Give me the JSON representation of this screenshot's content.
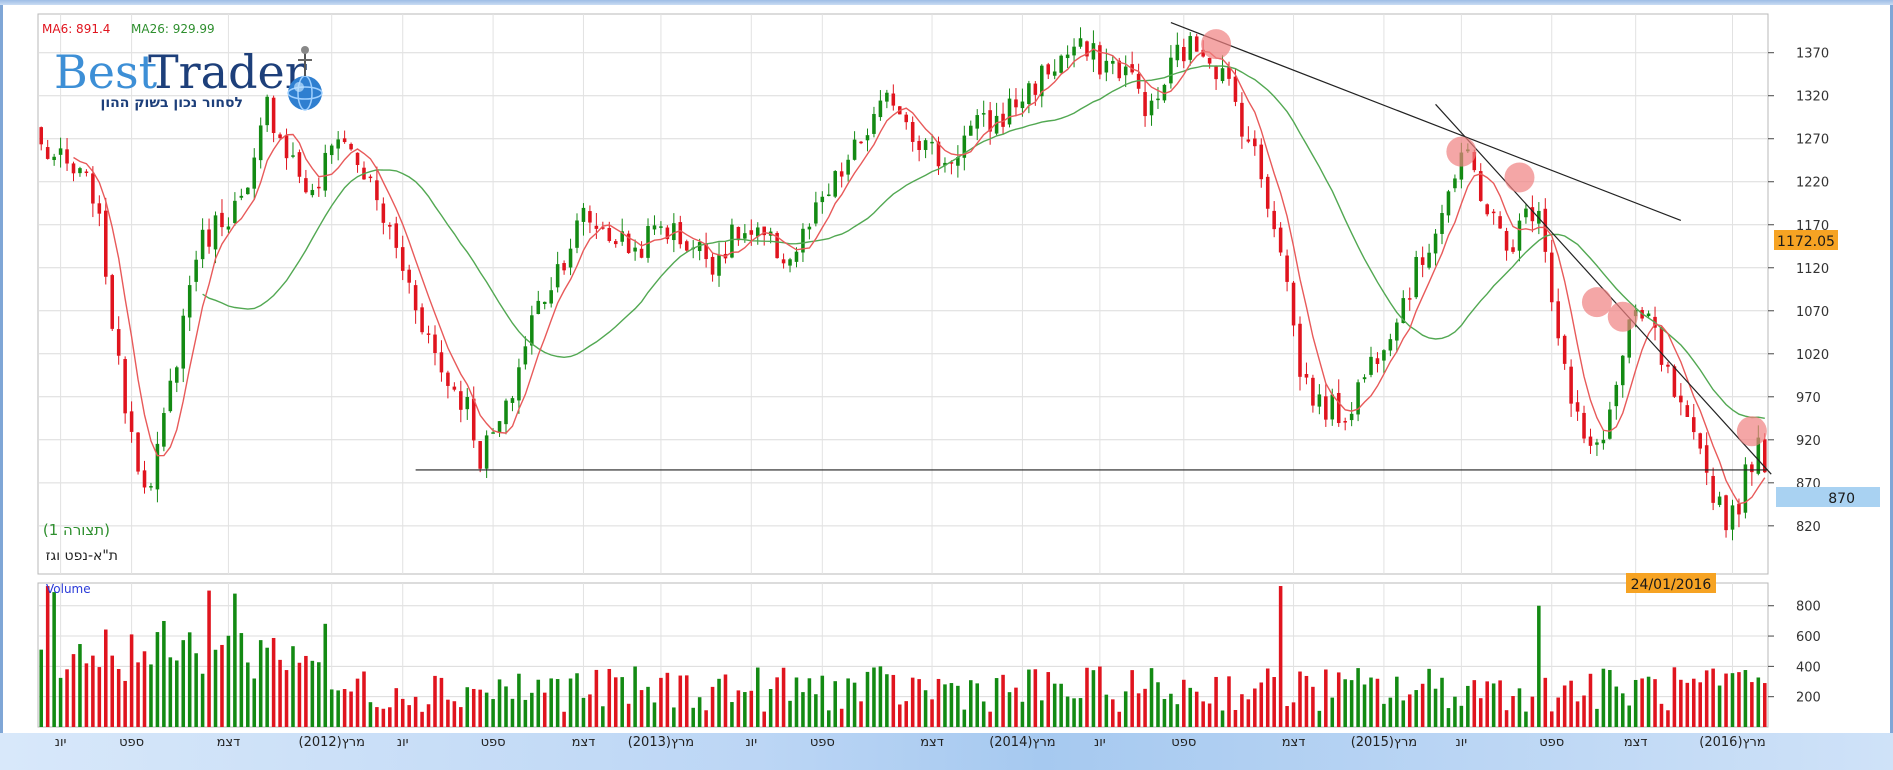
{
  "header": {
    "ma6_label": "MA6: 891.4",
    "ma26_label": "MA26: 929.99"
  },
  "logo": {
    "brand_part1": "Best",
    "brand_part2": "Trader",
    "tagline": "לסחור נכון בשוק ההון"
  },
  "chart_info": {
    "pattern_label": "(תצורה 1)",
    "instrument_name": "ת\"א-נפט וגז",
    "volume_label": "Volume",
    "last_price_tag": "1172.05",
    "current_level_tag": "870",
    "date_tag": "24/01/2016"
  },
  "colors": {
    "up": "#138a13",
    "down": "#e0141e",
    "ma6": "#e85a5a",
    "ma26": "#52a852",
    "tag_orange": "#f6a323",
    "tag_blue": "#a9d2f2",
    "highlight": "#f08080"
  },
  "chart_data": {
    "type": "candlestick",
    "price_axis": {
      "ticks": [
        820,
        870,
        920,
        970,
        1020,
        1070,
        1120,
        1170,
        1220,
        1270,
        1320,
        1370
      ],
      "range": [
        764,
        1415
      ]
    },
    "volume_axis": {
      "ticks": [
        200,
        400,
        600,
        800
      ],
      "range": [
        0,
        950
      ]
    },
    "x_axis_labels": [
      "יונ",
      "ספט",
      "דצמ",
      "מרץ(2012)",
      "יונ",
      "ספט",
      "דצמ",
      "מרץ(2013)",
      "יונ",
      "ספט",
      "דצמ",
      "מרץ(2014)",
      "יונ",
      "ספט",
      "דצמ",
      "מרץ(2015)",
      "יונ",
      "ספט",
      "דצמ",
      "מרץ(2016)"
    ],
    "x_axis_positions": [
      3,
      14,
      29,
      45,
      56,
      70,
      84,
      96,
      110,
      121,
      138,
      152,
      164,
      177,
      194,
      208,
      220,
      234,
      247,
      262
    ],
    "num_bars": 268,
    "anchors": [
      [
        0,
        1260
      ],
      [
        8,
        1210
      ],
      [
        10,
        1120
      ],
      [
        12,
        1000
      ],
      [
        15,
        900
      ],
      [
        17,
        860
      ],
      [
        20,
        980
      ],
      [
        24,
        1140
      ],
      [
        28,
        1180
      ],
      [
        32,
        1200
      ],
      [
        35,
        1310
      ],
      [
        38,
        1260
      ],
      [
        42,
        1200
      ],
      [
        46,
        1280
      ],
      [
        50,
        1230
      ],
      [
        54,
        1160
      ],
      [
        58,
        1080
      ],
      [
        62,
        1000
      ],
      [
        66,
        960
      ],
      [
        68,
        900
      ],
      [
        72,
        950
      ],
      [
        76,
        1060
      ],
      [
        80,
        1120
      ],
      [
        84,
        1180
      ],
      [
        88,
        1160
      ],
      [
        92,
        1140
      ],
      [
        96,
        1170
      ],
      [
        100,
        1150
      ],
      [
        104,
        1130
      ],
      [
        108,
        1160
      ],
      [
        112,
        1150
      ],
      [
        116,
        1130
      ],
      [
        120,
        1180
      ],
      [
        124,
        1230
      ],
      [
        128,
        1280
      ],
      [
        132,
        1320
      ],
      [
        136,
        1270
      ],
      [
        140,
        1240
      ],
      [
        144,
        1280
      ],
      [
        148,
        1290
      ],
      [
        152,
        1320
      ],
      [
        156,
        1350
      ],
      [
        160,
        1375
      ],
      [
        164,
        1360
      ],
      [
        168,
        1350
      ],
      [
        172,
        1300
      ],
      [
        176,
        1370
      ],
      [
        180,
        1380
      ],
      [
        184,
        1330
      ],
      [
        188,
        1250
      ],
      [
        192,
        1150
      ],
      [
        195,
        1000
      ],
      [
        198,
        960
      ],
      [
        202,
        950
      ],
      [
        206,
        1010
      ],
      [
        210,
        1070
      ],
      [
        214,
        1130
      ],
      [
        218,
        1210
      ],
      [
        221,
        1250
      ],
      [
        224,
        1190
      ],
      [
        227,
        1140
      ],
      [
        230,
        1180
      ],
      [
        232,
        1200
      ],
      [
        234,
        1090
      ],
      [
        237,
        960
      ],
      [
        240,
        900
      ],
      [
        243,
        950
      ],
      [
        246,
        1050
      ],
      [
        249,
        1060
      ],
      [
        252,
        990
      ],
      [
        255,
        930
      ],
      [
        258,
        880
      ],
      [
        261,
        830
      ],
      [
        263,
        850
      ],
      [
        265,
        900
      ],
      [
        266,
        910
      ],
      [
        267,
        870
      ]
    ],
    "volume_peaks": [
      [
        1,
        930
      ],
      [
        2,
        890
      ],
      [
        26,
        900
      ],
      [
        30,
        880
      ],
      [
        192,
        930
      ],
      [
        232,
        800
      ],
      [
        267,
        290
      ]
    ],
    "ma6_last": 891.4,
    "ma26_last": 929.99,
    "support_line": {
      "price": 885,
      "from_bar": 58,
      "to_bar": 268
    },
    "trendlines": [
      {
        "from": [
          175,
          1405
        ],
        "to": [
          254,
          1175
        ]
      },
      {
        "from": [
          216,
          1310
        ],
        "to": [
          268,
          880
        ]
      }
    ],
    "highlights": [
      [
        182,
        1380
      ],
      [
        220,
        1255
      ],
      [
        229,
        1225
      ],
      [
        241,
        1080
      ],
      [
        245,
        1063
      ],
      [
        265,
        930
      ]
    ],
    "ma6_series": "moving average (6)",
    "ma26_series": "moving average (26)"
  }
}
